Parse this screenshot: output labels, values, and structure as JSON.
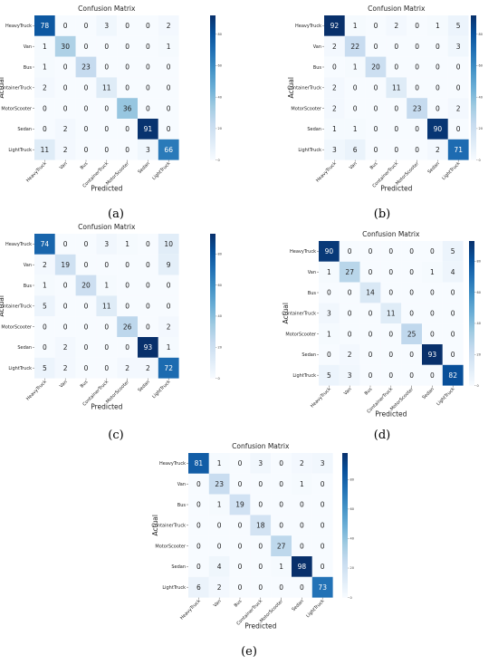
{
  "chart_data": [
    {
      "type": "heatmap",
      "panel_label": "(a)",
      "title": "Confusion Matrix",
      "xlabel": "Predicted",
      "ylabel": "Actual",
      "categories": [
        "HeavyTruck",
        "Van",
        "Bus",
        "ContainerTruck",
        "MotorScooter",
        "Sedan",
        "LightTruck"
      ],
      "colorbar": {
        "range": [
          0,
          92
        ],
        "ticks": [
          0,
          20,
          40,
          60,
          80
        ]
      },
      "matrix": [
        [
          78,
          0,
          0,
          3,
          0,
          0,
          2
        ],
        [
          1,
          30,
          0,
          0,
          0,
          0,
          1
        ],
        [
          1,
          0,
          23,
          0,
          0,
          0,
          0
        ],
        [
          2,
          0,
          0,
          11,
          0,
          0,
          0
        ],
        [
          0,
          0,
          0,
          0,
          36,
          0,
          0
        ],
        [
          0,
          2,
          0,
          0,
          0,
          91,
          0
        ],
        [
          11,
          2,
          0,
          0,
          0,
          3,
          66
        ]
      ]
    },
    {
      "type": "heatmap",
      "panel_label": "(b)",
      "title": "Confusion Matrix",
      "xlabel": "Predicted",
      "ylabel": "Actual",
      "categories": [
        "HeavyTruck",
        "Van",
        "Bus",
        "ContainerTruck",
        "MotorScooter",
        "Sedan",
        "LightTruck"
      ],
      "colorbar": {
        "range": [
          0,
          92
        ],
        "ticks": [
          0,
          20,
          40,
          60,
          80
        ]
      },
      "matrix": [
        [
          92,
          1,
          0,
          2,
          0,
          1,
          5
        ],
        [
          2,
          22,
          0,
          0,
          0,
          0,
          3
        ],
        [
          0,
          1,
          20,
          0,
          0,
          0,
          0
        ],
        [
          2,
          0,
          0,
          11,
          0,
          0,
          0
        ],
        [
          2,
          0,
          0,
          0,
          23,
          0,
          2
        ],
        [
          1,
          1,
          0,
          0,
          0,
          90,
          0
        ],
        [
          3,
          6,
          0,
          0,
          0,
          2,
          71
        ]
      ]
    },
    {
      "type": "heatmap",
      "panel_label": "(c)",
      "title": "Confusion Matrix",
      "xlabel": "Predicted",
      "ylabel": "Actual",
      "categories": [
        "HeavyTruck",
        "Van",
        "Bus",
        "ContainerTruck",
        "MotorScooter",
        "Sedan",
        "LightTruck"
      ],
      "colorbar": {
        "range": [
          0,
          93
        ],
        "ticks": [
          0,
          20,
          40,
          60,
          80
        ]
      },
      "matrix": [
        [
          74,
          0,
          0,
          3,
          1,
          0,
          10
        ],
        [
          2,
          19,
          0,
          0,
          0,
          0,
          9
        ],
        [
          1,
          0,
          20,
          1,
          0,
          0,
          0
        ],
        [
          5,
          0,
          0,
          11,
          0,
          0,
          0
        ],
        [
          0,
          0,
          0,
          0,
          26,
          0,
          2
        ],
        [
          0,
          2,
          0,
          0,
          0,
          93,
          1
        ],
        [
          5,
          2,
          0,
          0,
          2,
          2,
          72
        ]
      ]
    },
    {
      "type": "heatmap",
      "panel_label": "(d)",
      "title": "Confusion Matrix",
      "xlabel": "Predicted",
      "ylabel": "Actual",
      "categories": [
        "HeavyTruck",
        "Van",
        "Bus",
        "ContainerTruck",
        "MotorScooter",
        "Sedan",
        "LightTruck"
      ],
      "colorbar": {
        "range": [
          0,
          93
        ],
        "ticks": [
          0,
          20,
          40,
          60,
          80
        ]
      },
      "matrix": [
        [
          90,
          0,
          0,
          0,
          0,
          0,
          5
        ],
        [
          1,
          27,
          0,
          0,
          0,
          1,
          4
        ],
        [
          0,
          0,
          14,
          0,
          0,
          0,
          0
        ],
        [
          3,
          0,
          0,
          11,
          0,
          0,
          0
        ],
        [
          1,
          0,
          0,
          0,
          25,
          0,
          0
        ],
        [
          0,
          2,
          0,
          0,
          0,
          93,
          0
        ],
        [
          5,
          3,
          0,
          0,
          0,
          0,
          82
        ]
      ]
    },
    {
      "type": "heatmap",
      "panel_label": "(e)",
      "title": "Confusion Matrix",
      "xlabel": "Predicted",
      "ylabel": "Actual",
      "categories": [
        "HeavyTruck",
        "Van",
        "Bus",
        "ContainerTruck",
        "MotorScooter",
        "Sedan",
        "LightTruck"
      ],
      "colorbar": {
        "range": [
          0,
          98
        ],
        "ticks": [
          0,
          20,
          40,
          60,
          80
        ]
      },
      "matrix": [
        [
          81,
          1,
          0,
          3,
          0,
          2,
          3
        ],
        [
          0,
          23,
          0,
          0,
          0,
          1,
          0
        ],
        [
          0,
          1,
          19,
          0,
          0,
          0,
          0
        ],
        [
          0,
          0,
          0,
          18,
          0,
          0,
          0
        ],
        [
          0,
          0,
          0,
          0,
          27,
          0,
          0
        ],
        [
          0,
          4,
          0,
          0,
          1,
          98,
          0
        ],
        [
          6,
          2,
          0,
          0,
          0,
          0,
          73
        ]
      ]
    }
  ]
}
